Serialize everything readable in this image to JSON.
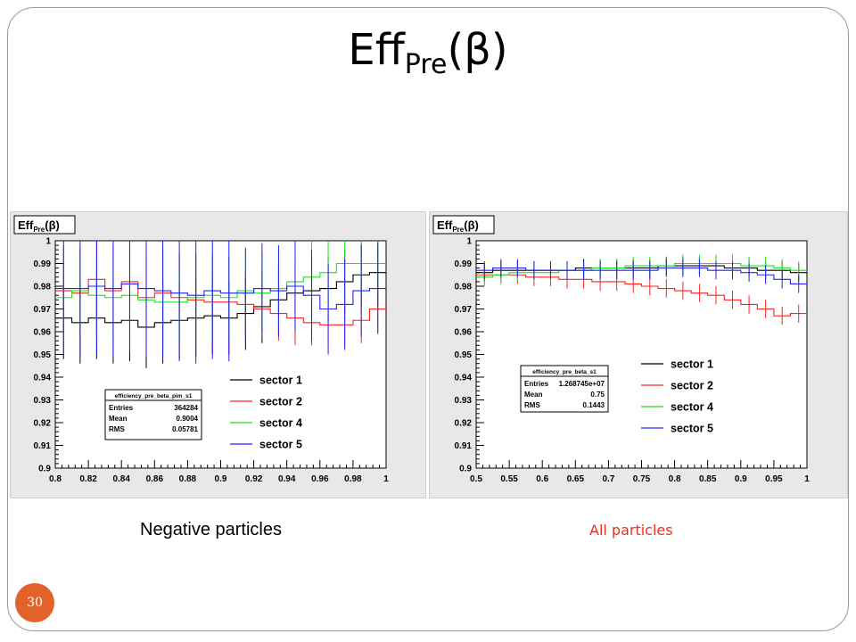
{
  "slide": {
    "title_main": "Eff",
    "title_sub": "Pre",
    "title_arg": "(β)",
    "page_number": "30",
    "caption_left": "Negative particles",
    "caption_right": "All particles",
    "caption_right_color": "#e8321f",
    "badge_color": "#e2622c"
  },
  "chart_data": [
    {
      "type": "line",
      "hist_title": "Eff",
      "hist_title_sub": "Pre",
      "hist_title_arg": "(β)",
      "xlim": [
        0.8,
        1.0
      ],
      "ylim": [
        0.9,
        1.0
      ],
      "xticks": [
        "0.8",
        "0.82",
        "0.84",
        "0.86",
        "0.88",
        "0.9",
        "0.92",
        "0.94",
        "0.96",
        "0.98",
        "1"
      ],
      "yticks": [
        "0.9",
        "0.91",
        "0.92",
        "0.93",
        "0.94",
        "0.95",
        "0.96",
        "0.97",
        "0.98",
        "0.99",
        "1"
      ],
      "stats": {
        "name": "efficiency_pre_beta_pim_s1",
        "rows": [
          [
            "Entries",
            "364284"
          ],
          [
            "Mean",
            "0.9004"
          ],
          [
            "RMS",
            "0.05781"
          ]
        ]
      },
      "legend_position": "bottom-right",
      "bin_edges": [
        0.8,
        0.81,
        0.82,
        0.83,
        0.84,
        0.85,
        0.86,
        0.87,
        0.88,
        0.89,
        0.9,
        0.91,
        0.92,
        0.93,
        0.94,
        0.95,
        0.96,
        0.97,
        0.98,
        0.99,
        1.0
      ],
      "series": [
        {
          "name": "sector 1",
          "color": "#000000",
          "values": [
            0.966,
            0.964,
            0.966,
            0.964,
            0.965,
            0.962,
            0.964,
            0.965,
            0.966,
            0.967,
            0.966,
            0.968,
            0.971,
            0.974,
            0.977,
            0.978,
            0.979,
            0.982,
            0.985,
            0.986
          ],
          "errors": [
            0.018,
            0.018,
            0.018,
            0.018,
            0.018,
            0.018,
            0.018,
            0.017,
            0.017,
            0.017,
            0.016,
            0.016,
            0.016,
            0.015,
            0.015,
            0.015,
            0.014,
            0.014,
            0.014,
            0.014
          ]
        },
        {
          "name": "sector 2",
          "color": "#ff2020",
          "values": [
            0.978,
            0.977,
            0.983,
            0.978,
            0.982,
            0.975,
            0.977,
            0.975,
            0.974,
            0.973,
            0.973,
            0.972,
            0.97,
            0.968,
            0.966,
            0.964,
            0.963,
            0.963,
            0.965,
            0.97
          ],
          "errors": [
            0.02,
            0.02,
            0.02,
            0.02,
            0.02,
            0.02,
            0.02,
            0.02,
            0.02,
            0.02,
            0.02,
            0.012,
            0.012,
            0.012,
            0.012,
            0.01,
            0.01,
            0.01,
            0.01,
            0.01
          ]
        },
        {
          "name": "sector 4",
          "color": "#20e020",
          "values": [
            0.975,
            0.978,
            0.976,
            0.975,
            0.976,
            0.974,
            0.973,
            0.973,
            0.975,
            0.976,
            0.975,
            0.978,
            0.977,
            0.979,
            0.982,
            0.984,
            0.986,
            0.99,
            0.99,
            0.99
          ],
          "errors": [
            0.019,
            0.019,
            0.019,
            0.019,
            0.019,
            0.019,
            0.019,
            0.019,
            0.019,
            0.019,
            0.018,
            0.018,
            0.018,
            0.017,
            0.017,
            0.016,
            0.016,
            0.015,
            0.015,
            0.015
          ]
        },
        {
          "name": "sector 5",
          "color": "#2020ff",
          "values": [
            0.979,
            0.979,
            0.98,
            0.979,
            0.981,
            0.979,
            0.978,
            0.977,
            0.976,
            0.978,
            0.977,
            0.977,
            0.979,
            0.978,
            0.98,
            0.976,
            0.97,
            0.972,
            0.978,
            0.979
          ],
          "errors": [
            0.03,
            0.03,
            0.03,
            0.03,
            0.03,
            0.03,
            0.03,
            0.03,
            0.03,
            0.03,
            0.03,
            0.02,
            0.02,
            0.02,
            0.02,
            0.02,
            0.02,
            0.02,
            0.02,
            0.02
          ]
        }
      ]
    },
    {
      "type": "line",
      "hist_title": "Eff",
      "hist_title_sub": "Pre",
      "hist_title_arg": "(β)",
      "xlim": [
        0.5,
        1.0
      ],
      "ylim": [
        0.9,
        1.0
      ],
      "xticks": [
        "0.5",
        "0.55",
        "0.6",
        "0.65",
        "0.7",
        "0.75",
        "0.8",
        "0.85",
        "0.9",
        "0.95",
        "1"
      ],
      "yticks": [
        "0.9",
        "0.91",
        "0.92",
        "0.93",
        "0.94",
        "0.95",
        "0.96",
        "0.97",
        "0.98",
        "0.99",
        "1"
      ],
      "stats": {
        "name": "efficiency_pre_beta_s1",
        "rows": [
          [
            "Entries",
            "1.268745e+07"
          ],
          [
            "Mean",
            "0.75"
          ],
          [
            "RMS",
            "0.1443"
          ]
        ]
      },
      "legend_position": "center-right",
      "bin_edges": [
        0.5,
        0.525,
        0.55,
        0.575,
        0.6,
        0.625,
        0.65,
        0.675,
        0.7,
        0.725,
        0.75,
        0.775,
        0.8,
        0.825,
        0.85,
        0.875,
        0.9,
        0.925,
        0.95,
        0.975,
        1.0
      ],
      "series": [
        {
          "name": "sector 1",
          "color": "#000000",
          "values": [
            0.986,
            0.987,
            0.987,
            0.987,
            0.987,
            0.987,
            0.988,
            0.988,
            0.988,
            0.988,
            0.988,
            0.989,
            0.989,
            0.989,
            0.989,
            0.988,
            0.988,
            0.987,
            0.987,
            0.986
          ],
          "errors": [
            0.004,
            0.004,
            0.004,
            0.004,
            0.004,
            0.004,
            0.004,
            0.004,
            0.004,
            0.004,
            0.004,
            0.004,
            0.004,
            0.004,
            0.004,
            0.004,
            0.004,
            0.004,
            0.004,
            0.004
          ]
        },
        {
          "name": "sector 2",
          "color": "#ff2020",
          "values": [
            0.985,
            0.985,
            0.985,
            0.984,
            0.984,
            0.983,
            0.983,
            0.982,
            0.982,
            0.981,
            0.98,
            0.979,
            0.978,
            0.977,
            0.976,
            0.974,
            0.972,
            0.97,
            0.967,
            0.968
          ],
          "errors": [
            0.004,
            0.004,
            0.004,
            0.004,
            0.004,
            0.004,
            0.004,
            0.004,
            0.004,
            0.004,
            0.004,
            0.004,
            0.004,
            0.004,
            0.004,
            0.004,
            0.004,
            0.004,
            0.004,
            0.004
          ]
        },
        {
          "name": "sector 4",
          "color": "#20e020",
          "values": [
            0.984,
            0.985,
            0.986,
            0.986,
            0.986,
            0.987,
            0.987,
            0.988,
            0.988,
            0.989,
            0.989,
            0.989,
            0.99,
            0.99,
            0.99,
            0.99,
            0.989,
            0.989,
            0.988,
            0.987
          ],
          "errors": [
            0.004,
            0.004,
            0.004,
            0.004,
            0.004,
            0.004,
            0.004,
            0.004,
            0.004,
            0.004,
            0.004,
            0.004,
            0.004,
            0.004,
            0.004,
            0.004,
            0.004,
            0.004,
            0.004,
            0.004
          ]
        },
        {
          "name": "sector 5",
          "color": "#2020ff",
          "values": [
            0.987,
            0.988,
            0.988,
            0.987,
            0.987,
            0.987,
            0.987,
            0.987,
            0.987,
            0.987,
            0.987,
            0.988,
            0.988,
            0.988,
            0.987,
            0.987,
            0.986,
            0.985,
            0.983,
            0.981
          ],
          "errors": [
            0.004,
            0.004,
            0.004,
            0.004,
            0.004,
            0.004,
            0.004,
            0.004,
            0.004,
            0.004,
            0.004,
            0.004,
            0.004,
            0.004,
            0.004,
            0.004,
            0.004,
            0.004,
            0.004,
            0.004
          ]
        }
      ]
    }
  ]
}
